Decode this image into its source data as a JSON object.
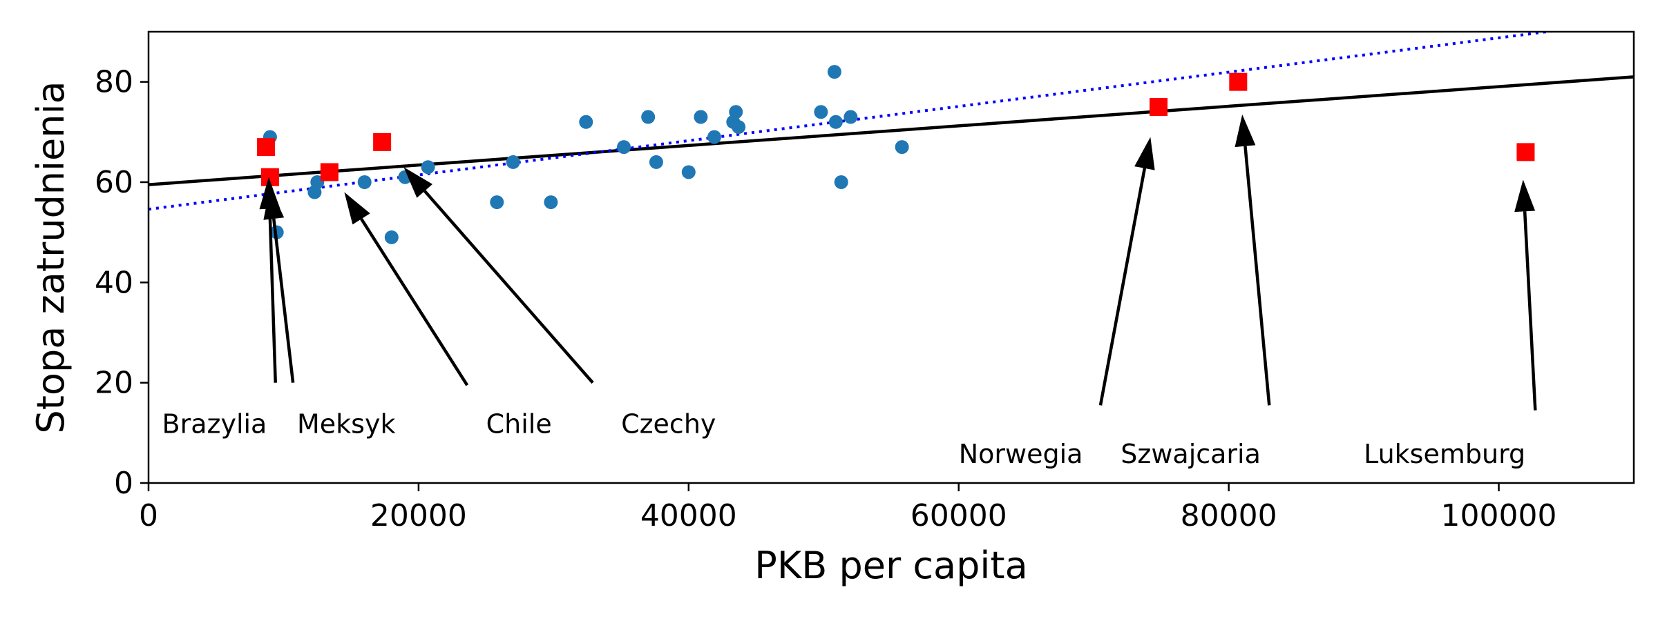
{
  "chart_data": {
    "type": "scatter",
    "title": "",
    "xlabel": "PKB per capita",
    "ylabel": "Stopa zatrudnienia",
    "xlim": [
      0,
      110000
    ],
    "ylim": [
      0,
      90
    ],
    "xticks": [
      0,
      20000,
      40000,
      60000,
      80000,
      100000
    ],
    "xtick_labels": [
      "0",
      "20000",
      "40000",
      "60000",
      "80000",
      "100000"
    ],
    "yticks": [
      0,
      20,
      40,
      60,
      80
    ],
    "ytick_labels": [
      "0",
      "20",
      "40",
      "60",
      "80"
    ],
    "grid": false,
    "series": [
      {
        "name": "countries",
        "marker": "circle",
        "color": "#1f77b4",
        "points": [
          {
            "x": 9000,
            "y": 69
          },
          {
            "x": 9500,
            "y": 50
          },
          {
            "x": 12300,
            "y": 58
          },
          {
            "x": 12500,
            "y": 60
          },
          {
            "x": 16000,
            "y": 60
          },
          {
            "x": 18000,
            "y": 49
          },
          {
            "x": 19000,
            "y": 61
          },
          {
            "x": 20700,
            "y": 63
          },
          {
            "x": 25800,
            "y": 56
          },
          {
            "x": 27000,
            "y": 64
          },
          {
            "x": 29800,
            "y": 56
          },
          {
            "x": 32400,
            "y": 72
          },
          {
            "x": 35200,
            "y": 67
          },
          {
            "x": 37000,
            "y": 73
          },
          {
            "x": 37600,
            "y": 64
          },
          {
            "x": 40000,
            "y": 62
          },
          {
            "x": 40900,
            "y": 73
          },
          {
            "x": 41900,
            "y": 69
          },
          {
            "x": 43300,
            "y": 72
          },
          {
            "x": 43500,
            "y": 74
          },
          {
            "x": 43700,
            "y": 71
          },
          {
            "x": 49800,
            "y": 74
          },
          {
            "x": 50800,
            "y": 82
          },
          {
            "x": 50900,
            "y": 72
          },
          {
            "x": 51300,
            "y": 60
          },
          {
            "x": 52000,
            "y": 73
          },
          {
            "x": 55800,
            "y": 67
          }
        ]
      },
      {
        "name": "highlighted",
        "marker": "square",
        "color": "#ff0000",
        "points": [
          {
            "x": 8700,
            "y": 67
          },
          {
            "x": 9000,
            "y": 61
          },
          {
            "x": 13400,
            "y": 62
          },
          {
            "x": 17300,
            "y": 68
          },
          {
            "x": 74800,
            "y": 75
          },
          {
            "x": 80700,
            "y": 80
          },
          {
            "x": 101990,
            "y": 66
          }
        ]
      }
    ],
    "lines": [
      {
        "name": "fit-solid",
        "style": "solid",
        "color": "#000000",
        "x": [
          0,
          110000
        ],
        "y": [
          59.5,
          81
        ]
      },
      {
        "name": "fit-dotted",
        "style": "dotted",
        "color": "#0000ff",
        "x": [
          0,
          110000
        ],
        "y": [
          54.6,
          92.2
        ]
      }
    ],
    "annotations": [
      {
        "text": "Brazylia",
        "label_x": 1000,
        "label_y": 10,
        "arrow_from": [
          9400,
          20
        ],
        "arrow_to": [
          8900,
          61
        ]
      },
      {
        "text": "",
        "label_x": null,
        "label_y": null,
        "arrow_from": [
          10700,
          20
        ],
        "arrow_to": [
          9000,
          59
        ]
      },
      {
        "text": "Meksyk",
        "label_x": 11000,
        "label_y": 10,
        "arrow_from": [
          23600,
          19.5
        ],
        "arrow_to": [
          14500,
          58
        ]
      },
      {
        "text": "Chile",
        "label_x": 25000,
        "label_y": 10,
        "arrow_from": [
          32900,
          20
        ],
        "arrow_to": [
          18900,
          63
        ]
      },
      {
        "text": "Czechy",
        "label_x": 35000,
        "label_y": 10,
        "arrow_from": [
          70500,
          15.5
        ],
        "arrow_to": [
          74200,
          69
        ]
      },
      {
        "text": "Norwegia",
        "label_x": 60000,
        "label_y": 4,
        "arrow_from": [
          83000,
          15.5
        ],
        "arrow_to": [
          81000,
          73.5
        ]
      },
      {
        "text": "Szwajcaria",
        "label_x": 72000,
        "label_y": 4,
        "arrow_from": [
          102700,
          14.5
        ],
        "arrow_to": [
          101800,
          60.5
        ]
      },
      {
        "text": "Luksemburg",
        "label_x": 90000,
        "label_y": 4,
        "arrow_from": null,
        "arrow_to": null
      }
    ]
  }
}
